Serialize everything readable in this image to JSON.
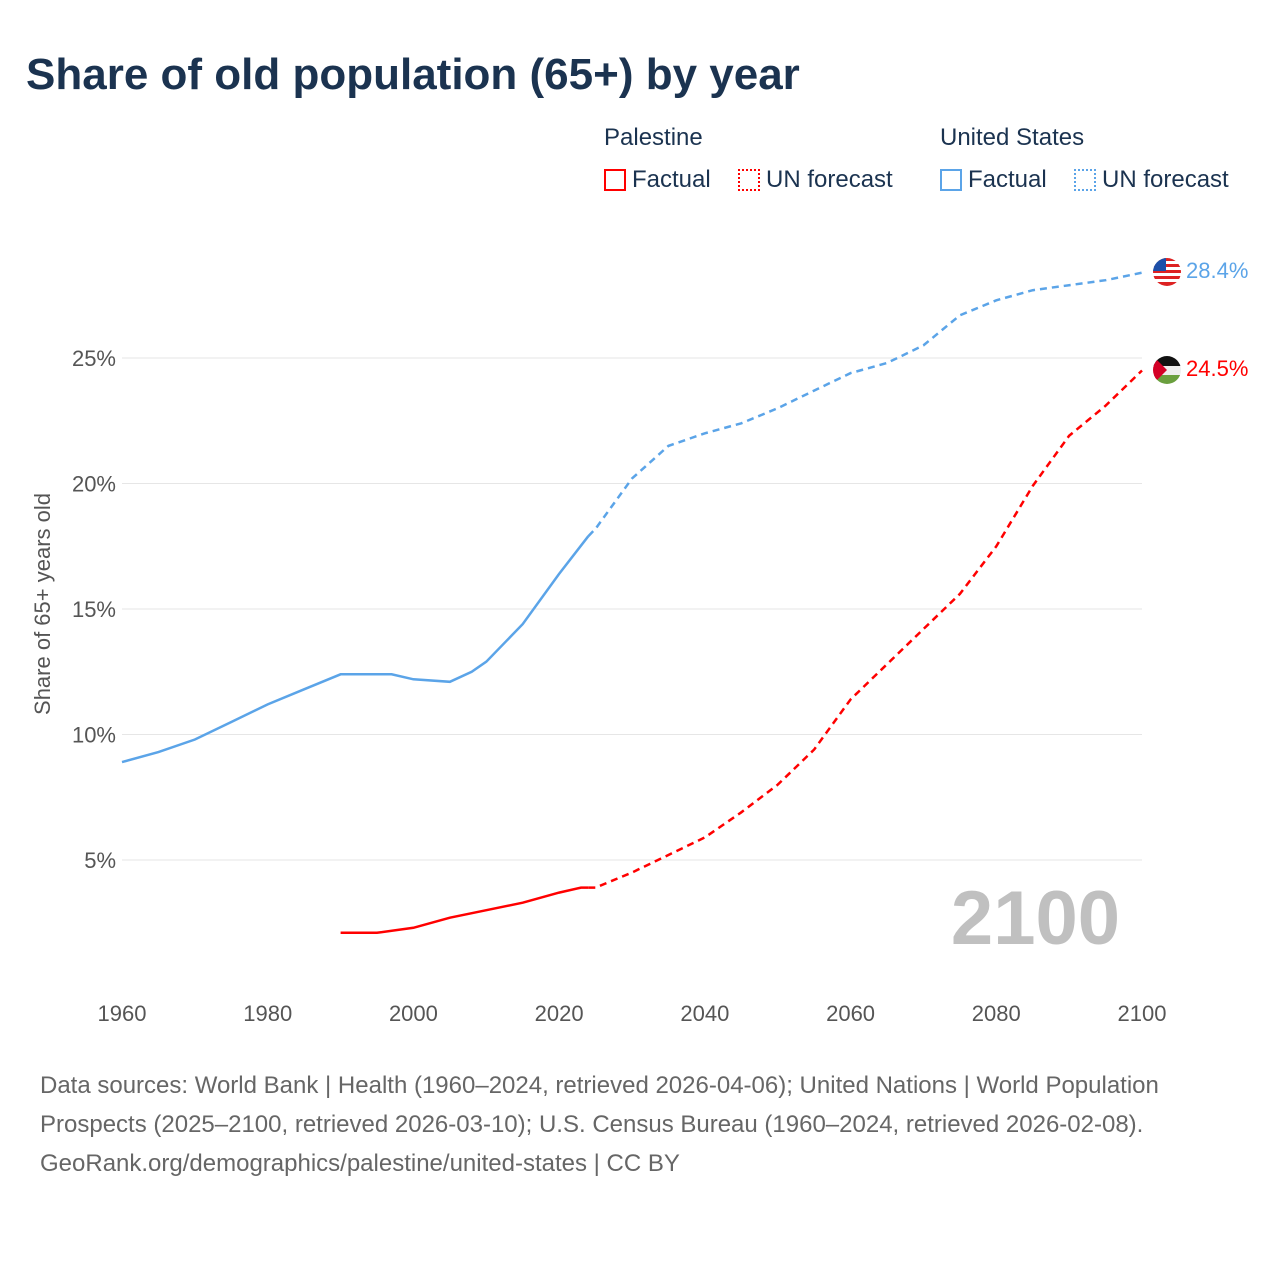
{
  "title": "Share of old population (65+) by year",
  "legend": {
    "groups": [
      {
        "name": "Palestine",
        "factual": "Factual",
        "forecast": "UN forecast",
        "color": "#ff0000"
      },
      {
        "name": "United States",
        "factual": "Factual",
        "forecast": "UN forecast",
        "color": "#5ba4e8"
      }
    ]
  },
  "year_watermark": "2100",
  "footer": {
    "sources": "Data sources: World Bank | Health (1960–2024, retrieved 2026-04-06); United Nations | World Population Prospects (2025–2100, retrieved 2026-03-10); U.S. Census Bureau (1960–2024, retrieved 2026-02-08).",
    "credit": "GeoRank.org/demographics/palestine/united-states | CC BY"
  },
  "chart_data": {
    "type": "line",
    "title": "Share of old population (65+) by year",
    "xlabel": "",
    "ylabel": "Share of 65+ years old",
    "xlim": [
      1960,
      2100
    ],
    "ylim": [
      0,
      29
    ],
    "xticks": [
      "1960",
      "1980",
      "2000",
      "2020",
      "2040",
      "2060",
      "2080",
      "2100"
    ],
    "yticks": [
      {
        "v": 5,
        "label": "5%"
      },
      {
        "v": 10,
        "label": "10%"
      },
      {
        "v": 15,
        "label": "15%"
      },
      {
        "v": 20,
        "label": "20%"
      },
      {
        "v": 25,
        "label": "25%"
      }
    ],
    "grid": true,
    "series": [
      {
        "name": "United States",
        "color": "#5ba4e8",
        "end_label": "28.4%",
        "forecast_start": 2024,
        "x": [
          1960,
          1965,
          1970,
          1975,
          1980,
          1985,
          1990,
          1995,
          1997,
          2000,
          2005,
          2008,
          2010,
          2015,
          2020,
          2024,
          2025,
          2030,
          2035,
          2040,
          2045,
          2050,
          2055,
          2060,
          2065,
          2070,
          2075,
          2080,
          2085,
          2090,
          2095,
          2100
        ],
        "y": [
          8.9,
          9.3,
          9.8,
          10.5,
          11.2,
          11.8,
          12.4,
          12.4,
          12.4,
          12.2,
          12.1,
          12.5,
          12.9,
          14.4,
          16.4,
          17.9,
          18.2,
          20.2,
          21.5,
          22.0,
          22.4,
          23.0,
          23.7,
          24.4,
          24.8,
          25.5,
          26.7,
          27.3,
          27.7,
          27.9,
          28.1,
          28.4
        ]
      },
      {
        "name": "Palestine",
        "color": "#ff0000",
        "end_label": "24.5%",
        "forecast_start": 2024,
        "x": [
          1990,
          1995,
          2000,
          2005,
          2010,
          2015,
          2020,
          2023,
          2024,
          2025,
          2030,
          2035,
          2040,
          2045,
          2050,
          2055,
          2060,
          2065,
          2070,
          2075,
          2080,
          2085,
          2090,
          2095,
          2100
        ],
        "y": [
          2.1,
          2.1,
          2.3,
          2.7,
          3.0,
          3.3,
          3.7,
          3.9,
          3.9,
          3.9,
          4.5,
          5.2,
          5.9,
          6.9,
          8.0,
          9.4,
          11.4,
          12.8,
          14.2,
          15.6,
          17.5,
          19.9,
          21.9,
          23.1,
          24.5
        ]
      }
    ]
  }
}
